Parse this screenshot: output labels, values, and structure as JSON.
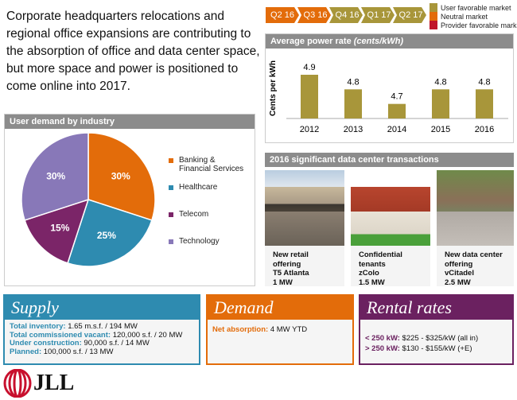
{
  "intro": "Corporate headquarters relocations and regional office expansions are contributing to the absorption of office and data center space, but more space and power is positioned to come online into 2017.",
  "timeline": [
    {
      "label": "Q2 16",
      "color": "#e36c0a"
    },
    {
      "label": "Q3 16",
      "color": "#e36c0a"
    },
    {
      "label": "Q4 16",
      "color": "#a8963a"
    },
    {
      "label": "Q1 17",
      "color": "#a8963a"
    },
    {
      "label": "Q2 17",
      "color": "#a8963a"
    }
  ],
  "market_legend": [
    {
      "label": "User favorable market",
      "color": "#a8963a"
    },
    {
      "label": "Neutral market",
      "color": "#e36c0a"
    },
    {
      "label": "Provider favorable market",
      "color": "#c0152a"
    }
  ],
  "power": {
    "title": "Average power rate ",
    "title_unit": "(cents/kWh)"
  },
  "chart_data": [
    {
      "type": "bar",
      "title": "Average power rate (cents/kWh)",
      "ylabel": "Cents per kWh",
      "categories": [
        "2012",
        "2013",
        "2014",
        "2015",
        "2016"
      ],
      "values": [
        4.9,
        4.8,
        4.7,
        4.8,
        4.8
      ],
      "labels": [
        "4.9",
        "4.8",
        "4.7",
        "4.8",
        "4.8"
      ],
      "color": "#a8963a",
      "grid": false
    },
    {
      "type": "pie",
      "title": "User demand by industry",
      "categories": [
        "Banking & Financial Services",
        "Healthcare",
        "Telecom",
        "Technology"
      ],
      "values": [
        30,
        25,
        15,
        30
      ],
      "labels": [
        "30%",
        "25%",
        "15%",
        "30%"
      ],
      "colors": [
        "#e36c0a",
        "#2e8bb0",
        "#7b2568",
        "#8878b8"
      ],
      "legend": "right"
    }
  ],
  "demand": {
    "title": "User demand by industry",
    "legend": [
      "Banking &",
      "Financial Services",
      "Healthcare",
      "Telecom",
      "Technology"
    ]
  },
  "transactions": {
    "title": "2016  significant data center transactions",
    "items": [
      {
        "lines": [
          "New retail offering",
          "T5 Atlanta",
          "1 MW"
        ]
      },
      {
        "lines": [
          "Confidential tenants",
          "zColo",
          "1.5 MW"
        ]
      },
      {
        "lines": [
          "New data center",
          "offering",
          "vCitadel",
          "2.5 MW"
        ]
      }
    ]
  },
  "supply": {
    "title": "Supply",
    "rows": [
      {
        "k": "Total inventory:",
        "v": " 1.65 m.s.f. / 194 MW"
      },
      {
        "k": "Total commissioned vacant:",
        "v": " 120,000 s.f.  / 20 MW"
      },
      {
        "k": "Under construction:",
        "v": " 90,000 s.f. / 14 MW"
      },
      {
        "k": "Planned:",
        "v": " 100,000 s.f.  / 13 MW"
      }
    ]
  },
  "demandbox": {
    "title": "Demand",
    "k": "Net absorption:",
    "v": " 4 MW  YTD"
  },
  "rental": {
    "title": "Rental rates",
    "rows": [
      {
        "k": "< 250 kW:",
        "v": " $225 - $325/kW  (all in)"
      },
      {
        "k": "> 250 kW:",
        "v": " $130 - $155/kW  (+E)"
      }
    ]
  },
  "logo": "JLL"
}
